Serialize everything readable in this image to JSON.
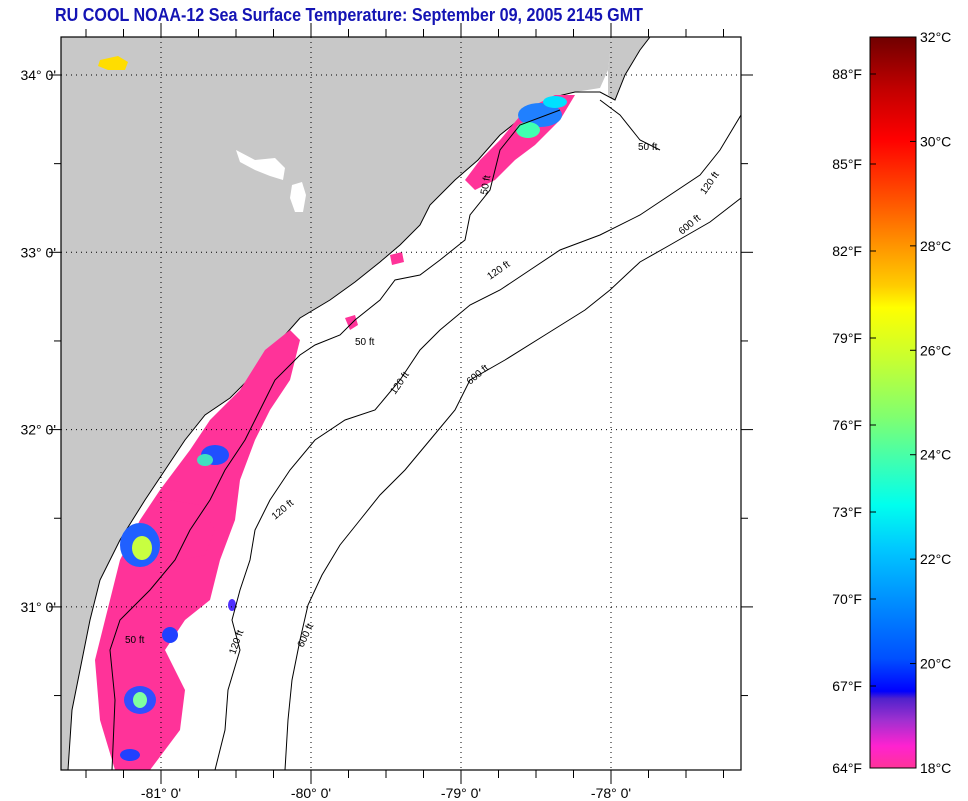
{
  "title": "RU COOL  NOAA-12  Sea Surface Temperature:  September 09, 2005 2145 GMT",
  "colors": {
    "title": "#1414b4",
    "land": "#c8c8c8",
    "cloud": "#ffffff",
    "sst_cold": "#ff3399"
  },
  "map": {
    "lat_labels": [
      "34° 0'",
      "33° 0'",
      "32° 0'",
      "31° 0'"
    ],
    "lon_labels": [
      "-81° 0'",
      "-80° 0'",
      "-79° 0'",
      "-78° 0'"
    ],
    "contour_labels": [
      "50 ft",
      "50 ft",
      "50 ft",
      "50 ft",
      "120 ft",
      "120 ft",
      "120 ft",
      "120 ft",
      "120 ft",
      "600 ft",
      "600 ft",
      "600 ft"
    ]
  },
  "colorbar": {
    "fahrenheit": [
      "88°F",
      "85°F",
      "82°F",
      "79°F",
      "76°F",
      "73°F",
      "70°F",
      "67°F",
      "64°F"
    ],
    "celsius": [
      "32°C",
      "30°C",
      "28°C",
      "26°C",
      "24°C",
      "22°C",
      "20°C",
      "18°C"
    ]
  }
}
